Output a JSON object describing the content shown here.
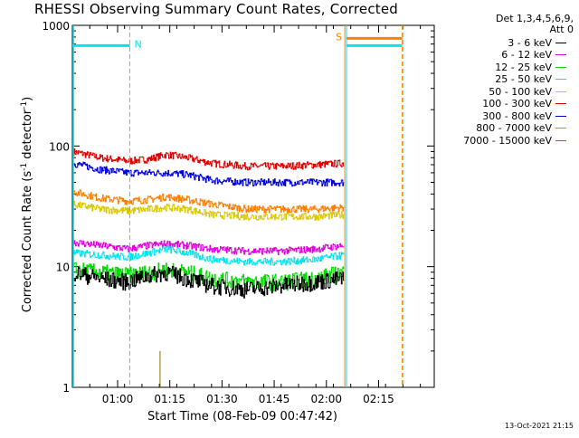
{
  "chart_data": {
    "type": "line",
    "title": "RHESSI Observing Summary Count Rates, Corrected",
    "detector_note": "Det 1,3,4,5,6,9,",
    "attenuator_note": "Att 0",
    "ylabel": "Corrected Count Rate (s",
    "ylabel_sup1": "-1",
    "ylabel_mid": " detector",
    "ylabel_sup2": "-1",
    "ylabel_end": ")",
    "xlabel": "Start Time (08-Feb-09 00:47:42)",
    "y_scale": "log",
    "ylim": [
      1,
      1000
    ],
    "y_ticks": [
      1,
      10,
      100,
      1000
    ],
    "y_tick_labels": [
      "1",
      "10",
      "100",
      "1000"
    ],
    "xlim_minutes_after_0047": [
      0,
      104
    ],
    "x_ticks": [
      "01:00",
      "01:15",
      "01:30",
      "01:45",
      "02:00",
      "02:15"
    ],
    "x_tick_minutes": [
      13,
      28,
      43,
      58,
      73,
      88
    ],
    "legend": {
      "placement": "right",
      "entries": [
        {
          "name": "3 - 6 keV",
          "color": "#000000"
        },
        {
          "name": "6 - 12 keV",
          "color": "#e000e0"
        },
        {
          "name": "12 - 25 keV",
          "color": "#00dd00"
        },
        {
          "name": "25 - 50 keV",
          "color": "#00e5ee"
        },
        {
          "name": "50 - 100 keV",
          "color": "#d8c800"
        },
        {
          "name": "100 - 300 keV",
          "color": "#e00000"
        },
        {
          "name": "300 - 800 keV",
          "color": "#0000dd"
        },
        {
          "name": "800 - 7000 keV",
          "color": "#ff7f00"
        },
        {
          "name": "7000 - 15000 keV",
          "color": "#8b7000"
        }
      ]
    },
    "series": [
      {
        "name": "100 - 300 keV",
        "color": "#e00000",
        "x_min": [
          0,
          8,
          16,
          22,
          27,
          33,
          40,
          50,
          60,
          70,
          78
        ],
        "values": [
          90,
          80,
          75,
          78,
          85,
          80,
          72,
          68,
          68,
          70,
          72
        ]
      },
      {
        "name": "300 - 800 keV",
        "color": "#0000dd",
        "x_min": [
          0,
          8,
          16,
          22,
          27,
          33,
          40,
          50,
          60,
          70,
          78
        ],
        "values": [
          72,
          64,
          60,
          60,
          60,
          58,
          52,
          50,
          50,
          50,
          50
        ]
      },
      {
        "name": "800 - 7000 keV",
        "color": "#ff7f00",
        "x_min": [
          0,
          8,
          16,
          22,
          27,
          33,
          40,
          50,
          60,
          70,
          78
        ],
        "values": [
          42,
          37,
          35,
          36,
          38,
          36,
          33,
          30,
          30,
          30,
          31
        ]
      },
      {
        "name": "50 - 100 keV",
        "color": "#d8c800",
        "x_min": [
          0,
          8,
          16,
          22,
          27,
          33,
          40,
          50,
          60,
          70,
          78
        ],
        "values": [
          33,
          30,
          29,
          30,
          31,
          30,
          27,
          26,
          26,
          26,
          27
        ]
      },
      {
        "name": "6 - 12 keV",
        "color": "#e000e0",
        "x_min": [
          0,
          8,
          16,
          22,
          27,
          33,
          40,
          50,
          60,
          70,
          78
        ],
        "values": [
          16,
          15,
          14,
          15,
          15.5,
          15,
          14,
          13.5,
          13.5,
          14,
          15
        ]
      },
      {
        "name": "25 - 50 keV",
        "color": "#00e5ee",
        "x_min": [
          0,
          8,
          16,
          22,
          27,
          33,
          40,
          50,
          60,
          70,
          78
        ],
        "values": [
          13,
          12.5,
          12,
          13,
          14,
          13,
          11.5,
          11,
          11,
          11.5,
          12.5
        ]
      },
      {
        "name": "12 - 25 keV",
        "color": "#00dd00",
        "x_min": [
          0,
          8,
          16,
          22,
          27,
          33,
          40,
          50,
          60,
          70,
          78
        ],
        "values": [
          9.5,
          9,
          8.5,
          9,
          9.5,
          9,
          8,
          7.5,
          7.5,
          8,
          9
        ]
      },
      {
        "name": "3 - 6 keV",
        "color": "#000000",
        "x_min": [
          0,
          8,
          16,
          22,
          27,
          33,
          40,
          50,
          60,
          70,
          78
        ],
        "values": [
          9,
          8,
          7.5,
          8.5,
          9,
          8,
          7,
          6.5,
          7,
          7.5,
          8
        ]
      }
    ],
    "annotations": [
      {
        "label": "N",
        "color": "#00e5ee",
        "minutes": 16.5,
        "level": 680
      },
      {
        "label": "S",
        "color": "#ff7f00",
        "minutes": 78.5,
        "level": 780
      }
    ],
    "grid": false
  },
  "footer_timestamp": "13-Oct-2021 21:15"
}
